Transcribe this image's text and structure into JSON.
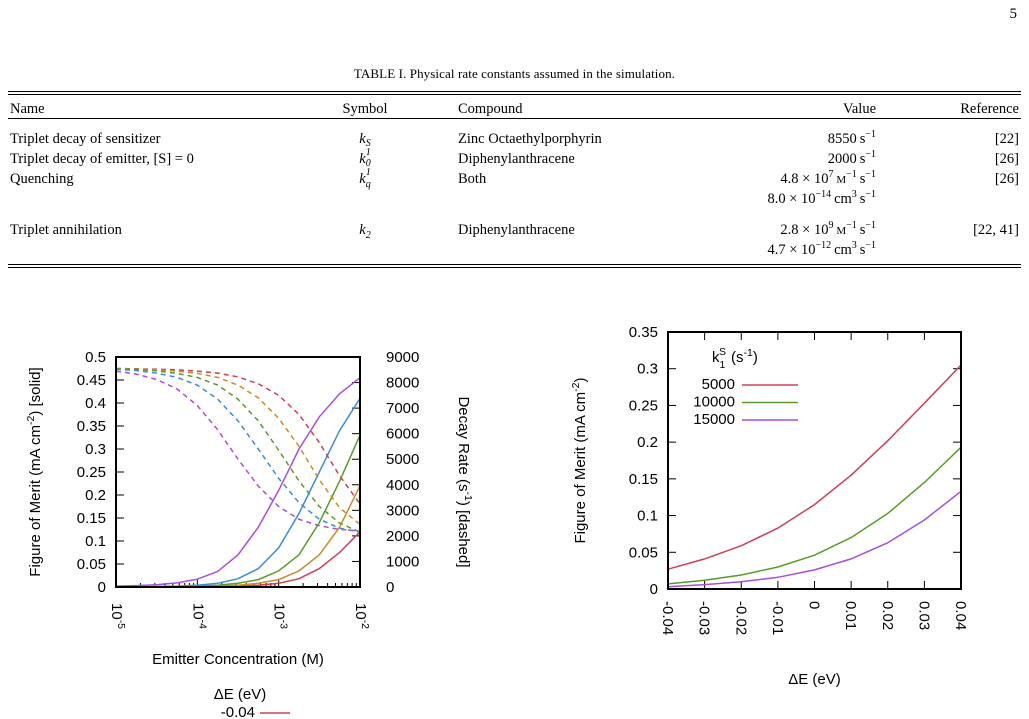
{
  "page": {
    "number": "5"
  },
  "table": {
    "caption": "TABLE I. Physical rate constants assumed in the simulation.",
    "headers": [
      "Name",
      "Symbol",
      "Compound",
      "Value",
      "Reference"
    ],
    "rows": [
      {
        "name": "Triplet decay of sensitizer",
        "symbol_base": "k",
        "symbol_sub": "1",
        "symbol_sup": "S",
        "compound": "Zinc Octaethylporphyrin",
        "value_mantissa": "8550",
        "value_unit": "s",
        "value_unit_exp": "−1",
        "value_tail": "",
        "reference": "[22]"
      },
      {
        "name": "Triplet decay of emitter, [S] = 0",
        "symbol_base": "k",
        "symbol_sub": "1",
        "symbol_sup": "0",
        "compound": "Diphenylanthracene",
        "value_mantissa": "2000",
        "value_unit": "s",
        "value_unit_exp": "−1",
        "value_tail": "",
        "reference": "[26]"
      },
      {
        "name": "Quenching",
        "symbol_base": "k",
        "symbol_sub": "q",
        "symbol_sup": "",
        "compound": "Both",
        "value_line1": {
          "m": "4.8 × 10",
          "e": "7",
          "u": "M",
          "ue": "−1",
          "u2": "s",
          "u2e": "−1"
        },
        "value_line2": {
          "m": "8.0 × 10",
          "e": "−14",
          "u": "cm",
          "ue": "3",
          "u2": "s",
          "u2e": "−1"
        },
        "reference": "[26]"
      },
      {
        "name": "Triplet annihilation",
        "symbol_base": "k",
        "symbol_sub": "2",
        "symbol_sup": "",
        "compound": "Diphenylanthracene",
        "value_line1": {
          "m": "2.8 × 10",
          "e": "9",
          "u": "M",
          "ue": "−1",
          "u2": "s",
          "u2e": "−1"
        },
        "value_line2": {
          "m": "4.7 × 10",
          "e": "−12",
          "u": "cm",
          "ue": "3",
          "u2": "s",
          "u2e": "−1"
        },
        "reference": "[22, 41]"
      }
    ]
  },
  "chart_data": [
    {
      "type": "line",
      "x_scale": "log",
      "xlabel": "Emitter Concentration (M)",
      "ylabel": "Figure of Merit (mA cm-2) [solid]",
      "y2label": "Decay Rate (s-1) [dashed]",
      "xlim": [
        1e-05,
        0.01
      ],
      "ylim": [
        0,
        0.5
      ],
      "y2lim": [
        0,
        9000
      ],
      "x_ticks": [
        "10-5",
        "10-4",
        "10-3",
        "10-2"
      ],
      "y_ticks": [
        "0",
        "0.05",
        "0.1",
        "0.15",
        "0.2",
        "0.25",
        "0.3",
        "0.35",
        "0.4",
        "0.45",
        "0.5"
      ],
      "y2_ticks": [
        "0",
        "1000",
        "2000",
        "3000",
        "4000",
        "5000",
        "6000",
        "7000",
        "8000",
        "9000"
      ],
      "legend_title": "ΔE (eV)",
      "legend_entries": [
        "-0.04"
      ],
      "x": [
        1e-05,
        1.78e-05,
        3.16e-05,
        5.62e-05,
        0.0001,
        0.000178,
        0.000316,
        0.000562,
        0.001,
        0.00178,
        0.00316,
        0.00562,
        0.01
      ],
      "series": [
        {
          "color": "#c9405a",
          "style": "solid",
          "values": [
            0,
            0,
            0,
            0,
            0,
            0.001,
            0.002,
            0.004,
            0.008,
            0.018,
            0.04,
            0.075,
            0.12
          ]
        },
        {
          "color": "#c98a2a",
          "style": "solid",
          "values": [
            0,
            0,
            0,
            0,
            0.001,
            0.002,
            0.004,
            0.008,
            0.016,
            0.035,
            0.07,
            0.13,
            0.22
          ]
        },
        {
          "color": "#5a9a2c",
          "style": "solid",
          "values": [
            0,
            0,
            0,
            0.001,
            0.002,
            0.004,
            0.008,
            0.016,
            0.035,
            0.07,
            0.14,
            0.23,
            0.33
          ]
        },
        {
          "color": "#3f8ad8",
          "style": "solid",
          "values": [
            0,
            0,
            0.001,
            0.002,
            0.004,
            0.008,
            0.018,
            0.04,
            0.085,
            0.16,
            0.25,
            0.34,
            0.41
          ]
        },
        {
          "color": "#a94fd6",
          "style": "solid",
          "values": [
            0.002,
            0.003,
            0.005,
            0.009,
            0.017,
            0.034,
            0.07,
            0.13,
            0.21,
            0.3,
            0.37,
            0.42,
            0.455
          ]
        },
        {
          "color": "#c9405a",
          "style": "dashed",
          "axis": "y2",
          "values": [
            8550,
            8540,
            8520,
            8500,
            8450,
            8370,
            8220,
            7950,
            7500,
            6750,
            5650,
            4350,
            3250
          ]
        },
        {
          "color": "#c98a2a",
          "style": "dashed",
          "axis": "y2",
          "values": [
            8550,
            8530,
            8500,
            8450,
            8360,
            8200,
            7900,
            7400,
            6600,
            5500,
            4200,
            3100,
            2450
          ]
        },
        {
          "color": "#5a9a2c",
          "style": "dashed",
          "axis": "y2",
          "values": [
            8540,
            8510,
            8460,
            8360,
            8200,
            7900,
            7350,
            6500,
            5350,
            4150,
            3150,
            2500,
            2150
          ]
        },
        {
          "color": "#3f8ad8",
          "style": "dashed",
          "axis": "y2",
          "values": [
            8520,
            8470,
            8370,
            8200,
            7900,
            7350,
            6500,
            5400,
            4250,
            3300,
            2650,
            2300,
            2150
          ]
        },
        {
          "color": "#a94fd6",
          "style": "dashed",
          "axis": "y2",
          "values": [
            8450,
            8330,
            8120,
            7750,
            7100,
            6150,
            5000,
            3950,
            3150,
            2650,
            2400,
            2250,
            2200
          ]
        }
      ]
    },
    {
      "type": "line",
      "xlabel": "ΔE (eV)",
      "ylabel": "Figure of Merit (mA cm-2)",
      "xlim": [
        -0.04,
        0.04
      ],
      "ylim": [
        0,
        0.35
      ],
      "x_ticks": [
        "-0.04",
        "-0.03",
        "-0.02",
        "-0.01",
        "0",
        "0.01",
        "0.02",
        "0.03",
        "0.04"
      ],
      "y_ticks": [
        "0",
        "0.05",
        "0.1",
        "0.15",
        "0.2",
        "0.25",
        "0.3",
        "0.35"
      ],
      "legend_title": "k1S (s-1)",
      "x": [
        -0.04,
        -0.03,
        -0.02,
        -0.01,
        0,
        0.01,
        0.02,
        0.03,
        0.04
      ],
      "series": [
        {
          "name": "5000",
          "color": "#c9405a",
          "values": [
            0.027,
            0.041,
            0.059,
            0.083,
            0.115,
            0.155,
            0.202,
            0.253,
            0.305
          ]
        },
        {
          "name": "10000",
          "color": "#5a9a2c",
          "values": [
            0.007,
            0.012,
            0.019,
            0.03,
            0.046,
            0.07,
            0.103,
            0.145,
            0.193
          ]
        },
        {
          "name": "15000",
          "color": "#a94fd6",
          "values": [
            0.003,
            0.006,
            0.01,
            0.016,
            0.026,
            0.041,
            0.063,
            0.094,
            0.133
          ]
        }
      ]
    }
  ]
}
